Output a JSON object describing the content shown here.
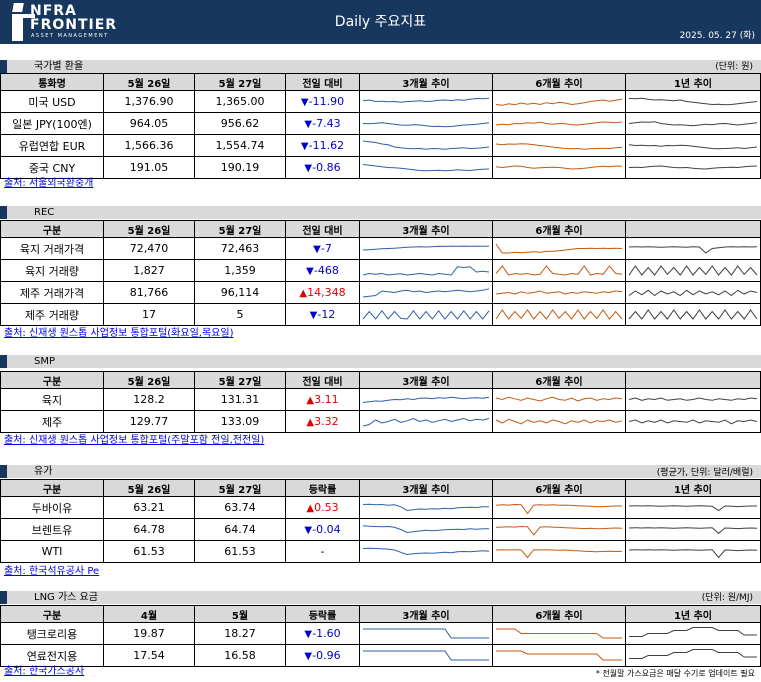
{
  "header": {
    "logo_line1": "NFRA",
    "logo_line2": "FRONTIER",
    "logo_line3": "ASSET MANAGEMENT",
    "title": "Daily 주요지표",
    "date": "2025. 05. 27 (화)",
    "background": "#17375e"
  },
  "colors": {
    "up": "#e00000",
    "down": "#0000cc",
    "chart_3m": "#2e5fa8",
    "chart_6m": "#c55a11",
    "chart_1y": "#404040"
  },
  "fx": {
    "title": "국가별 환율",
    "unit": "(단위: 원)",
    "headers": [
      "통화명",
      "5월 26일",
      "5월 27일",
      "전일 대비",
      "3개월 추이",
      "6개월 추이",
      "1년 추이"
    ],
    "rows": [
      {
        "name": "미국 USD",
        "d1": "1,376.90",
        "d2": "1,365.00",
        "dir": "down",
        "change": "-11.90"
      },
      {
        "name": "일본 JPY(100엔)",
        "d1": "964.05",
        "d2": "956.62",
        "dir": "down",
        "change": "-7.43"
      },
      {
        "name": "유럽연합 EUR",
        "d1": "1,566.36",
        "d2": "1,554.74",
        "dir": "down",
        "change": "-11.62"
      },
      {
        "name": "중국 CNY",
        "d1": "191.05",
        "d2": "190.19",
        "dir": "down",
        "change": "-0.86"
      }
    ],
    "source": "출처: 서울외국환중개"
  },
  "rec": {
    "title": "REC",
    "headers": [
      "구분",
      "5월 26일",
      "5월 27일",
      "전일 대비",
      "3개월 추이",
      "6개월 추이",
      ""
    ],
    "rows": [
      {
        "name": "육지 거래가격",
        "d1": "72,470",
        "d2": "72,463",
        "dir": "down",
        "change": "-7"
      },
      {
        "name": "육지 거래량",
        "d1": "1,827",
        "d2": "1,359",
        "dir": "down",
        "change": "-468"
      },
      {
        "name": "제주 거래가격",
        "d1": "81,766",
        "d2": "96,114",
        "dir": "up",
        "change": "14,348"
      },
      {
        "name": "제주 거래량",
        "d1": "17",
        "d2": "5",
        "dir": "down",
        "change": "-12"
      }
    ],
    "source": "출처: 신재생 원스톱 사업정보 통합포털(화요일,목요일)"
  },
  "smp": {
    "title": "SMP",
    "headers": [
      "구분",
      "5월 26일",
      "5월 27일",
      "전일 대비",
      "3개월 추이",
      "6개월 추이",
      ""
    ],
    "rows": [
      {
        "name": "육지",
        "d1": "128.2",
        "d2": "131.31",
        "dir": "up",
        "change": "3.11"
      },
      {
        "name": "제주",
        "d1": "129.77",
        "d2": "133.09",
        "dir": "up",
        "change": "3.32"
      }
    ],
    "source": "출처: 신재생 원스톱 사업정보 통합포털(주말포함 전일,전전일)"
  },
  "oil": {
    "title": "유가",
    "unit": "(평균가, 단위: 달러/배럴)",
    "headers": [
      "구분",
      "5월 26일",
      "5월 27일",
      "등락률",
      "3개월 추이",
      "6개월 추이",
      "1년 추이"
    ],
    "rows": [
      {
        "name": "두바이유",
        "d1": "63.21",
        "d2": "63.74",
        "dir": "up",
        "change": "0.53"
      },
      {
        "name": "브렌트유",
        "d1": "64.78",
        "d2": "64.74",
        "dir": "down",
        "change": "-0.04"
      },
      {
        "name": "WTI",
        "d1": "61.53",
        "d2": "61.53",
        "dir": "none",
        "change": "-"
      }
    ],
    "source": "출처: 한국석유공사 Pe"
  },
  "lng": {
    "title": "LNG 가스 요금",
    "unit": "(단위: 원/MJ)",
    "headers": [
      "구분",
      "4월",
      "5월",
      "등락률",
      "3개월 추이",
      "6개월 추이",
      "1년 추이"
    ],
    "rows": [
      {
        "name": "탱크로리용",
        "d1": "19.87",
        "d2": "18.27",
        "dir": "down",
        "change": "-1.60"
      },
      {
        "name": "연료전지용",
        "d1": "17.54",
        "d2": "16.58",
        "dir": "down",
        "change": "-0.96"
      }
    ],
    "source": "출처: 한국가스공사",
    "note": "* 전월말 가스요금은 매달 수기로 업데이트 필요"
  },
  "trend_series": {
    "fx_usd_3m": [
      0.55,
      0.6,
      0.5,
      0.52,
      0.48,
      0.5,
      0.45,
      0.5,
      0.52,
      0.55,
      0.5,
      0.53,
      0.58,
      0.6,
      0.56,
      0.62,
      0.58,
      0.65,
      0.7,
      0.68,
      0.72
    ],
    "fx_usd_6m": [
      0.3,
      0.25,
      0.35,
      0.28,
      0.4,
      0.32,
      0.38,
      0.3,
      0.42,
      0.35,
      0.45,
      0.4,
      0.3,
      0.35,
      0.42,
      0.5,
      0.55,
      0.6,
      0.52,
      0.58,
      0.65
    ],
    "fx_usd_1y": [
      0.7,
      0.68,
      0.72,
      0.65,
      0.6,
      0.62,
      0.58,
      0.55,
      0.6,
      0.5,
      0.45,
      0.4,
      0.35,
      0.3,
      0.32,
      0.28,
      0.3,
      0.35,
      0.4,
      0.45,
      0.5
    ],
    "fx_jpy_3m": [
      0.5,
      0.48,
      0.52,
      0.55,
      0.5,
      0.45,
      0.4,
      0.38,
      0.42,
      0.4,
      0.35,
      0.3,
      0.32,
      0.28,
      0.3,
      0.35,
      0.4,
      0.42,
      0.45,
      0.5,
      0.55
    ],
    "fx_jpy_6m": [
      0.4,
      0.45,
      0.42,
      0.5,
      0.48,
      0.55,
      0.52,
      0.58,
      0.5,
      0.45,
      0.5,
      0.48,
      0.42,
      0.4,
      0.45,
      0.5,
      0.55,
      0.6,
      0.58,
      0.55,
      0.6
    ],
    "fx_jpy_1y": [
      0.5,
      0.55,
      0.6,
      0.58,
      0.62,
      0.5,
      0.45,
      0.4,
      0.42,
      0.38,
      0.35,
      0.4,
      0.45,
      0.42,
      0.48,
      0.5,
      0.45,
      0.4,
      0.45,
      0.5,
      0.55
    ],
    "fx_eur_3m": [
      0.8,
      0.75,
      0.7,
      0.6,
      0.55,
      0.4,
      0.35,
      0.3,
      0.28,
      0.3,
      0.25,
      0.3,
      0.28,
      0.25,
      0.3,
      0.32,
      0.35,
      0.3,
      0.32,
      0.35,
      0.4
    ],
    "fx_eur_6m": [
      0.6,
      0.55,
      0.6,
      0.58,
      0.62,
      0.6,
      0.55,
      0.5,
      0.45,
      0.4,
      0.35,
      0.3,
      0.28,
      0.3,
      0.25,
      0.28,
      0.3,
      0.32,
      0.3,
      0.35,
      0.38
    ],
    "fx_eur_1y": [
      0.55,
      0.5,
      0.52,
      0.48,
      0.5,
      0.45,
      0.5,
      0.48,
      0.52,
      0.5,
      0.45,
      0.4,
      0.35,
      0.3,
      0.28,
      0.3,
      0.32,
      0.35,
      0.3,
      0.35,
      0.4
    ],
    "fx_cny_3m": [
      0.7,
      0.65,
      0.6,
      0.55,
      0.5,
      0.48,
      0.45,
      0.4,
      0.35,
      0.3,
      0.28,
      0.3,
      0.32,
      0.28,
      0.3,
      0.35,
      0.32,
      0.3,
      0.35,
      0.38,
      0.4
    ],
    "fx_cny_6m": [
      0.55,
      0.5,
      0.55,
      0.6,
      0.58,
      0.5,
      0.45,
      0.48,
      0.5,
      0.52,
      0.5,
      0.45,
      0.4,
      0.42,
      0.45,
      0.5,
      0.55,
      0.58,
      0.55,
      0.6,
      0.58
    ],
    "fx_cny_1y": [
      0.5,
      0.52,
      0.5,
      0.55,
      0.58,
      0.6,
      0.55,
      0.5,
      0.48,
      0.5,
      0.45,
      0.42,
      0.4,
      0.45,
      0.48,
      0.5,
      0.52,
      0.5,
      0.55,
      0.58,
      0.6
    ],
    "rec_lp_3m": [
      0.4,
      0.42,
      0.45,
      0.48,
      0.5,
      0.52,
      0.55,
      0.58,
      0.6,
      0.62,
      0.6,
      0.62,
      0.65,
      0.64,
      0.66,
      0.65,
      0.66,
      0.65,
      0.66,
      0.65,
      0.66
    ],
    "rec_lp_6m": [
      0.8,
      0.2,
      0.2,
      0.25,
      0.22,
      0.25,
      0.28,
      0.25,
      0.3,
      0.32,
      0.35,
      0.4,
      0.45,
      0.5,
      0.5,
      0.52,
      0.5,
      0.52,
      0.5,
      0.52,
      0.5
    ],
    "rec_lp_1y": [
      0.6,
      0.62,
      0.6,
      0.62,
      0.6,
      0.58,
      0.6,
      0.62,
      0.6,
      0.58,
      0.62,
      0.6,
      0.2,
      0.5,
      0.55,
      0.6,
      0.62,
      0.6,
      0.62,
      0.6,
      0.62
    ],
    "rec_lv_3m": [
      0.2,
      0.3,
      0.25,
      0.3,
      0.2,
      0.25,
      0.28,
      0.2,
      0.25,
      0.3,
      0.25,
      0.2,
      0.3,
      0.25,
      0.2,
      0.75,
      0.7,
      0.75,
      0.4,
      0.45,
      0.4
    ],
    "rec_lv_6m": [
      0.3,
      0.8,
      0.2,
      0.3,
      0.25,
      0.3,
      0.2,
      0.25,
      0.8,
      0.3,
      0.25,
      0.2,
      0.3,
      0.25,
      0.8,
      0.2,
      0.3,
      0.25,
      0.8,
      0.3,
      0.25
    ],
    "rec_lv_1y": [
      0.2,
      0.8,
      0.2,
      0.7,
      0.2,
      0.8,
      0.25,
      0.7,
      0.2,
      0.8,
      0.2,
      0.7,
      0.25,
      0.8,
      0.2,
      0.7,
      0.2,
      0.8,
      0.25,
      0.7,
      0.2
    ],
    "rec_jp_3m": [
      0.2,
      0.25,
      0.3,
      0.6,
      0.55,
      0.5,
      0.6,
      0.65,
      0.55,
      0.6,
      0.5,
      0.55,
      0.6,
      0.55,
      0.6,
      0.65,
      0.6,
      0.55,
      0.6,
      0.65,
      0.75
    ],
    "rec_jp_6m": [
      0.4,
      0.45,
      0.5,
      0.4,
      0.55,
      0.45,
      0.5,
      0.6,
      0.45,
      0.5,
      0.55,
      0.4,
      0.5,
      0.45,
      0.55,
      0.5,
      0.45,
      0.55,
      0.5,
      0.6,
      0.55
    ],
    "rec_jp_1y": [
      0.3,
      0.6,
      0.35,
      0.65,
      0.3,
      0.6,
      0.4,
      0.55,
      0.3,
      0.65,
      0.35,
      0.6,
      0.4,
      0.55,
      0.35,
      0.6,
      0.3,
      0.65,
      0.4,
      0.6,
      0.5
    ],
    "rec_jv_3m": [
      0.2,
      0.7,
      0.2,
      0.75,
      0.2,
      0.7,
      0.25,
      0.2,
      0.75,
      0.2,
      0.7,
      0.2,
      0.75,
      0.2,
      0.7,
      0.2,
      0.75,
      0.2,
      0.7,
      0.2,
      0.75
    ],
    "rec_jv_6m": [
      0.2,
      0.8,
      0.2,
      0.7,
      0.25,
      0.8,
      0.2,
      0.7,
      0.2,
      0.8,
      0.25,
      0.7,
      0.2,
      0.8,
      0.2,
      0.7,
      0.25,
      0.8,
      0.2,
      0.7,
      0.2
    ],
    "rec_jv_1y": [
      0.2,
      0.7,
      0.2,
      0.8,
      0.2,
      0.7,
      0.2,
      0.8,
      0.2,
      0.7,
      0.2,
      0.8,
      0.2,
      0.7,
      0.2,
      0.8,
      0.2,
      0.7,
      0.2,
      0.8,
      0.2
    ],
    "smp_l_3m": [
      0.3,
      0.35,
      0.4,
      0.38,
      0.45,
      0.5,
      0.48,
      0.55,
      0.5,
      0.58,
      0.6,
      0.55,
      0.62,
      0.58,
      0.65,
      0.6,
      0.55,
      0.6,
      0.62,
      0.58,
      0.65
    ],
    "smp_l_6m": [
      0.6,
      0.5,
      0.65,
      0.55,
      0.45,
      0.6,
      0.5,
      0.4,
      0.55,
      0.65,
      0.5,
      0.45,
      0.6,
      0.4,
      0.55,
      0.6,
      0.45,
      0.55,
      0.5,
      0.6,
      0.55
    ],
    "smp_l_1y": [
      0.5,
      0.6,
      0.45,
      0.55,
      0.5,
      0.6,
      0.45,
      0.5,
      0.55,
      0.45,
      0.5,
      0.6,
      0.5,
      0.45,
      0.55,
      0.5,
      0.45,
      0.55,
      0.5,
      0.6,
      0.55
    ],
    "smp_j_3m": [
      0.2,
      0.3,
      0.6,
      0.4,
      0.5,
      0.65,
      0.45,
      0.55,
      0.7,
      0.5,
      0.6,
      0.45,
      0.55,
      0.65,
      0.5,
      0.6,
      0.7,
      0.55,
      0.65,
      0.6,
      0.7
    ],
    "smp_j_6m": [
      0.6,
      0.4,
      0.65,
      0.5,
      0.35,
      0.6,
      0.45,
      0.55,
      0.4,
      0.6,
      0.5,
      0.35,
      0.55,
      0.45,
      0.6,
      0.4,
      0.55,
      0.5,
      0.6,
      0.45,
      0.55
    ],
    "smp_j_1y": [
      0.5,
      0.6,
      0.4,
      0.55,
      0.45,
      0.6,
      0.4,
      0.55,
      0.5,
      0.45,
      0.6,
      0.4,
      0.55,
      0.5,
      0.45,
      0.6,
      0.35,
      0.55,
      0.5,
      0.6,
      0.5
    ],
    "oil_d_3m": [
      0.7,
      0.72,
      0.68,
      0.7,
      0.65,
      0.68,
      0.55,
      0.3,
      0.35,
      0.4,
      0.38,
      0.42,
      0.4,
      0.45,
      0.42,
      0.48,
      0.5,
      0.52,
      0.5,
      0.55,
      0.55
    ],
    "oil_d_6m": [
      0.65,
      0.68,
      0.66,
      0.7,
      0.68,
      0.1,
      0.66,
      0.68,
      0.66,
      0.68,
      0.65,
      0.66,
      0.64,
      0.62,
      0.6,
      0.58,
      0.55,
      0.56,
      0.58,
      0.6,
      0.6
    ],
    "oil_d_1y": [
      0.6,
      0.62,
      0.6,
      0.62,
      0.6,
      0.58,
      0.6,
      0.62,
      0.6,
      0.58,
      0.6,
      0.62,
      0.6,
      0.58,
      0.3,
      0.6,
      0.58,
      0.56,
      0.58,
      0.6,
      0.6
    ],
    "oil_b_3m": [
      0.75,
      0.72,
      0.7,
      0.68,
      0.7,
      0.65,
      0.5,
      0.3,
      0.35,
      0.4,
      0.45,
      0.42,
      0.45,
      0.48,
      0.5,
      0.52,
      0.5,
      0.55,
      0.52,
      0.55,
      0.55
    ],
    "oil_b_6m": [
      0.65,
      0.66,
      0.68,
      0.66,
      0.7,
      0.68,
      0.15,
      0.66,
      0.68,
      0.66,
      0.64,
      0.62,
      0.6,
      0.58,
      0.56,
      0.58,
      0.55,
      0.56,
      0.58,
      0.6,
      0.58
    ],
    "oil_b_1y": [
      0.6,
      0.62,
      0.6,
      0.62,
      0.6,
      0.62,
      0.6,
      0.58,
      0.6,
      0.62,
      0.6,
      0.58,
      0.6,
      0.62,
      0.25,
      0.6,
      0.58,
      0.56,
      0.58,
      0.6,
      0.58
    ],
    "oil_w_3m": [
      0.7,
      0.72,
      0.7,
      0.68,
      0.66,
      0.6,
      0.45,
      0.3,
      0.35,
      0.38,
      0.4,
      0.38,
      0.42,
      0.45,
      0.42,
      0.48,
      0.5,
      0.48,
      0.52,
      0.55,
      0.52
    ],
    "oil_w_6m": [
      0.6,
      0.62,
      0.6,
      0.62,
      0.6,
      0.1,
      0.62,
      0.6,
      0.62,
      0.6,
      0.58,
      0.6,
      0.56,
      0.55,
      0.52,
      0.5,
      0.48,
      0.5,
      0.52,
      0.5,
      0.52
    ],
    "oil_w_1y": [
      0.6,
      0.62,
      0.6,
      0.62,
      0.6,
      0.62,
      0.6,
      0.58,
      0.6,
      0.62,
      0.6,
      0.58,
      0.6,
      0.62,
      0.1,
      0.6,
      0.58,
      0.56,
      0.58,
      0.6,
      0.58
    ],
    "lng_t_3m": [
      0.8,
      0.8,
      0.8,
      0.8,
      0.8,
      0.8,
      0.8,
      0.8,
      0.8,
      0.8,
      0.8,
      0.8,
      0.8,
      0.8,
      0.2,
      0.2,
      0.2,
      0.2,
      0.2,
      0.2,
      0.2
    ],
    "lng_t_6m": [
      0.8,
      0.8,
      0.8,
      0.8,
      0.5,
      0.5,
      0.5,
      0.5,
      0.5,
      0.5,
      0.5,
      0.5,
      0.5,
      0.5,
      0.5,
      0.5,
      0.5,
      0.2,
      0.2,
      0.2,
      0.2
    ],
    "lng_t_1y": [
      0.3,
      0.3,
      0.3,
      0.5,
      0.5,
      0.5,
      0.5,
      0.7,
      0.7,
      0.7,
      0.9,
      0.9,
      0.9,
      0.9,
      0.7,
      0.7,
      0.7,
      0.7,
      0.4,
      0.4,
      0.4
    ],
    "lng_f_3m": [
      0.8,
      0.8,
      0.8,
      0.8,
      0.8,
      0.8,
      0.8,
      0.8,
      0.8,
      0.8,
      0.8,
      0.8,
      0.8,
      0.8,
      0.2,
      0.2,
      0.2,
      0.2,
      0.2,
      0.2,
      0.2
    ],
    "lng_f_6m": [
      0.8,
      0.8,
      0.8,
      0.8,
      0.8,
      0.6,
      0.6,
      0.6,
      0.6,
      0.6,
      0.6,
      0.6,
      0.6,
      0.6,
      0.6,
      0.6,
      0.6,
      0.2,
      0.2,
      0.2,
      0.2
    ],
    "lng_f_1y": [
      0.3,
      0.3,
      0.3,
      0.5,
      0.5,
      0.5,
      0.5,
      0.7,
      0.7,
      0.7,
      0.9,
      0.9,
      0.9,
      0.9,
      0.7,
      0.7,
      0.7,
      0.7,
      0.4,
      0.4,
      0.4
    ]
  }
}
